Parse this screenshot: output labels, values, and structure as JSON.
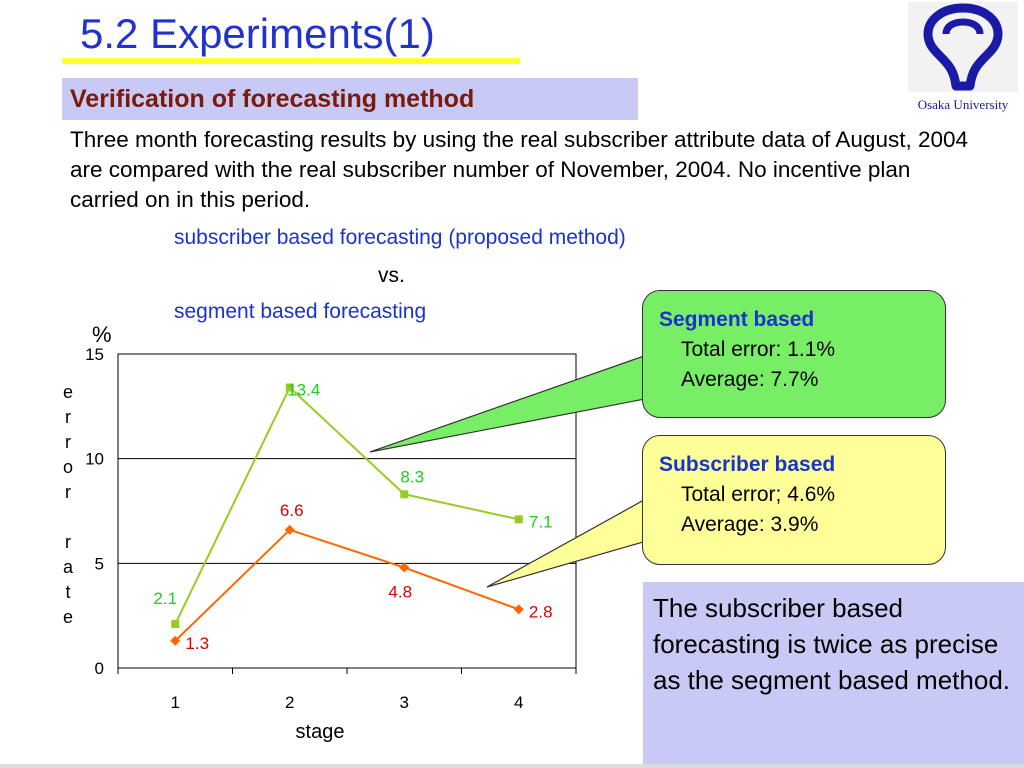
{
  "title": "5.2 Experiments(1)",
  "logo": {
    "label": "Osaka University",
    "icon": "osaka-university-emblem-icon",
    "color": "#1a1aa6"
  },
  "subtitle": "Verification of forecasting method",
  "body_text": "Three month forecasting results by using the real subscriber attribute data of August, 2004 are compared with the real subscriber number of November, 2004.  No incentive plan carried on in this period.",
  "comparison": {
    "proposed": "subscriber based forecasting (proposed method)",
    "vs": "vs.",
    "segment": "segment based forecasting"
  },
  "callouts": {
    "segment": {
      "head": "Segment based",
      "line1": "Total error: 1.1%",
      "line2": "Average: 7.7%",
      "color": "#77ee66"
    },
    "subscriber": {
      "head": "Subscriber based",
      "line1": "Total error; 4.6%",
      "line2": "Average: 3.9%",
      "color": "#ffff99"
    }
  },
  "conclusion": "The subscriber based forecasting is twice as precise as the segment based method.",
  "chart_data": {
    "type": "line",
    "categories": [
      "1",
      "2",
      "3",
      "4"
    ],
    "series": [
      {
        "values": [
          2.1,
          13.4,
          8.3,
          7.1
        ],
        "labels": [
          "2.1",
          "13.4",
          "8.3",
          "7.1"
        ],
        "color": "#99cc22",
        "label_color": "#22cc22",
        "marker": "square"
      },
      {
        "values": [
          1.3,
          6.6,
          4.8,
          2.8
        ],
        "labels": [
          "1.3",
          "6.6",
          "4.8",
          "2.8"
        ],
        "color": "#ff6600",
        "label_color": "#dd0000",
        "marker": "diamond"
      }
    ],
    "xlabel": "stage",
    "ylabel": "error rate",
    "unit": "%",
    "ylim": [
      0,
      15
    ],
    "yticks": [
      "0",
      "5",
      "10",
      "15"
    ],
    "grid": true
  }
}
